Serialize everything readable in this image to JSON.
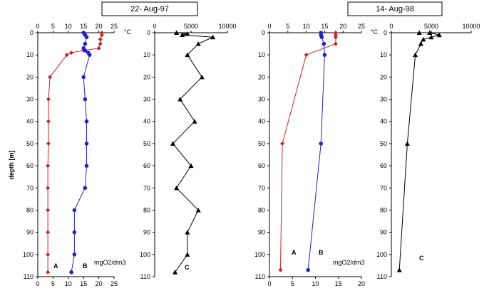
{
  "panels": [
    {
      "title": "22- Aug-97",
      "unit_temp": "°C",
      "unit_oxygen": "mgO2/dm3",
      "ylabel": "depth [m]",
      "label_a": "A",
      "label_b": "B",
      "label_c": "C"
    },
    {
      "title": "14- Aug-98",
      "unit_temp": "°C",
      "unit_oxygen": "mgO2/dm3",
      "label_a": "A",
      "label_b": "B",
      "label_c": "C"
    }
  ],
  "colors": {
    "series_a": "#cc2222",
    "series_b": "#2222cc",
    "series_c": "#000000"
  },
  "chart_data": [
    {
      "type": "line",
      "xlabel": "mgO2/dm3",
      "ylabel": "depth [m]",
      "xlim": [
        0,
        25
      ],
      "ylim": [
        0,
        110
      ],
      "x_ticks_top": [
        0,
        5,
        10,
        15,
        20,
        25
      ],
      "x_ticks_bottom": [
        0,
        5,
        10,
        15,
        20,
        25
      ],
      "y_ticks": [
        0,
        10,
        20,
        30,
        40,
        50,
        60,
        70,
        80,
        90,
        100,
        110
      ],
      "series": [
        {
          "name": "A",
          "marker": "diamond",
          "points": [
            [
              21,
              0
            ],
            [
              21,
              1
            ],
            [
              20.5,
              3
            ],
            [
              20.5,
              5
            ],
            [
              20,
              7
            ],
            [
              15,
              8
            ],
            [
              11,
              9
            ],
            [
              9.5,
              10
            ],
            [
              4,
              20
            ],
            [
              3.5,
              30
            ],
            [
              3.5,
              40
            ],
            [
              3.5,
              50
            ],
            [
              3.3,
              60
            ],
            [
              3.3,
              70
            ],
            [
              3.3,
              80
            ],
            [
              3.3,
              90
            ],
            [
              3.3,
              100
            ],
            [
              3.3,
              108
            ]
          ]
        },
        {
          "name": "B",
          "marker": "circle",
          "points": [
            [
              15,
              0
            ],
            [
              15.5,
              1
            ],
            [
              16,
              2
            ],
            [
              15.5,
              5
            ],
            [
              15,
              7
            ],
            [
              15.5,
              8
            ],
            [
              16.5,
              9
            ],
            [
              17,
              10
            ],
            [
              15,
              20
            ],
            [
              15.5,
              30
            ],
            [
              16,
              40
            ],
            [
              16,
              50
            ],
            [
              16,
              60
            ],
            [
              15.5,
              70
            ],
            [
              12,
              80
            ],
            [
              12,
              90
            ],
            [
              12,
              100
            ],
            [
              11,
              108
            ]
          ]
        }
      ]
    },
    {
      "type": "line",
      "xlim": [
        0,
        10000
      ],
      "ylim": [
        0,
        110
      ],
      "x_ticks_top": [
        0,
        5000,
        10000
      ],
      "y_ticks": [
        0,
        10,
        20,
        30,
        40,
        50,
        60,
        70,
        80,
        90,
        100,
        110
      ],
      "series": [
        {
          "name": "C",
          "marker": "triangle",
          "points": [
            [
              3000,
              0
            ],
            [
              4500,
              0.5
            ],
            [
              3800,
              1
            ],
            [
              8000,
              2
            ],
            [
              6000,
              5
            ],
            [
              4500,
              10
            ],
            [
              6500,
              20
            ],
            [
              3500,
              30
            ],
            [
              5500,
              40
            ],
            [
              2500,
              50
            ],
            [
              5000,
              60
            ],
            [
              3000,
              70
            ],
            [
              6000,
              80
            ],
            [
              4500,
              90
            ],
            [
              4500,
              100
            ],
            [
              2800,
              108
            ]
          ]
        }
      ]
    },
    {
      "type": "line",
      "xlabel": "mgO2/dm3",
      "xlim": [
        0,
        25
      ],
      "ylim": [
        0,
        110
      ],
      "x_ticks_top": [
        0,
        5,
        10,
        15,
        20,
        25
      ],
      "x_ticks_bottom": [
        0,
        5,
        10,
        15,
        20
      ],
      "y_ticks": [
        0,
        10,
        20,
        30,
        40,
        50,
        60,
        70,
        80,
        90,
        100,
        110
      ],
      "series": [
        {
          "name": "A",
          "marker": "diamond",
          "points": [
            [
              18,
              0
            ],
            [
              18,
              1
            ],
            [
              18,
              2
            ],
            [
              18,
              5
            ],
            [
              10,
              10
            ],
            [
              3.5,
              50
            ],
            [
              3,
              107
            ]
          ]
        },
        {
          "name": "B",
          "marker": "circle",
          "points": [
            [
              14,
              0
            ],
            [
              14,
              1
            ],
            [
              14.2,
              2
            ],
            [
              14.8,
              5
            ],
            [
              15,
              10
            ],
            [
              14,
              50
            ],
            [
              10.5,
              107
            ]
          ]
        }
      ]
    },
    {
      "type": "line",
      "xlim": [
        0,
        10000
      ],
      "ylim": [
        0,
        110
      ],
      "x_ticks_top": [
        0,
        5000,
        10000
      ],
      "y_ticks": [
        0,
        10,
        20,
        30,
        40,
        50,
        60,
        70,
        80,
        90,
        100,
        110
      ],
      "series": [
        {
          "name": "C",
          "marker": "triangle",
          "points": [
            [
              3500,
              0
            ],
            [
              4800,
              0
            ],
            [
              6000,
              1
            ],
            [
              5000,
              2
            ],
            [
              4000,
              3
            ],
            [
              3700,
              5
            ],
            [
              3000,
              10
            ],
            [
              2000,
              50
            ],
            [
              1000,
              107
            ]
          ]
        }
      ]
    }
  ]
}
